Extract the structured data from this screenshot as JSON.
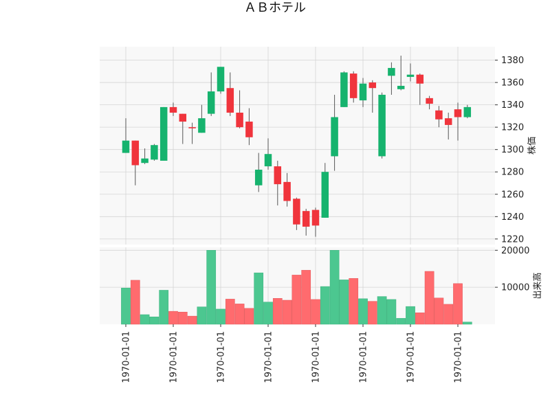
{
  "chart_data": {
    "type": "candlestick",
    "title": "ＡＢホテル",
    "price_label": "株価",
    "volume_label": "出来高",
    "price_ylim": [
      1215,
      1392
    ],
    "price_ticks": [
      1220,
      1240,
      1260,
      1280,
      1300,
      1320,
      1340,
      1360,
      1380
    ],
    "volume_ylim": [
      0,
      20800
    ],
    "volume_ticks": [
      10000,
      20000
    ],
    "x_tick_labels": [
      "1970-01-01",
      "1970-01-01",
      "1970-01-01",
      "1970-01-01",
      "1970-01-01",
      "1970-01-01",
      "1970-01-01",
      "1970-01-01"
    ],
    "x_tick_bar_index": [
      0,
      5,
      10,
      15,
      20,
      25,
      30,
      35
    ],
    "grid": true,
    "colors": {
      "up": "#16b36e",
      "down": "#f0343c",
      "up_volume": "#4cc790",
      "down_volume": "#ff6b6e",
      "grid": "#d4d4d4",
      "panel_bg": "#f8f8f8"
    },
    "ohlc": [
      {
        "open": 1297,
        "high": 1328,
        "low": 1297,
        "close": 1308,
        "volume": 9800
      },
      {
        "open": 1308,
        "high": 1308,
        "low": 1268,
        "close": 1286,
        "volume": 11900
      },
      {
        "open": 1288,
        "high": 1301,
        "low": 1287,
        "close": 1292,
        "volume": 2600
      },
      {
        "open": 1291,
        "high": 1305,
        "low": 1290,
        "close": 1304,
        "volume": 2000
      },
      {
        "open": 1290,
        "high": 1338,
        "low": 1290,
        "close": 1338,
        "volume": 9200
      },
      {
        "open": 1338,
        "high": 1342,
        "low": 1330,
        "close": 1333,
        "volume": 3500
      },
      {
        "open": 1332,
        "high": 1332,
        "low": 1305,
        "close": 1325,
        "volume": 3300
      },
      {
        "open": 1320,
        "high": 1324,
        "low": 1305,
        "close": 1319,
        "volume": 2200
      },
      {
        "open": 1315,
        "high": 1340,
        "low": 1315,
        "close": 1328,
        "volume": 4700
      },
      {
        "open": 1332,
        "high": 1369,
        "low": 1330,
        "close": 1352,
        "volume": 20000
      },
      {
        "open": 1352,
        "high": 1374,
        "low": 1350,
        "close": 1374,
        "volume": 4100
      },
      {
        "open": 1355,
        "high": 1369,
        "low": 1330,
        "close": 1333,
        "volume": 6800
      },
      {
        "open": 1333,
        "high": 1353,
        "low": 1319,
        "close": 1320,
        "volume": 5500
      },
      {
        "open": 1325,
        "high": 1337,
        "low": 1304,
        "close": 1311,
        "volume": 4300
      },
      {
        "open": 1268,
        "high": 1297,
        "low": 1262,
        "close": 1282,
        "volume": 13900
      },
      {
        "open": 1285,
        "high": 1310,
        "low": 1282,
        "close": 1296,
        "volume": 6000
      },
      {
        "open": 1285,
        "high": 1290,
        "low": 1250,
        "close": 1269,
        "volume": 7000
      },
      {
        "open": 1271,
        "high": 1279,
        "low": 1249,
        "close": 1254,
        "volume": 6500
      },
      {
        "open": 1256,
        "high": 1257,
        "low": 1228,
        "close": 1233,
        "volume": 13300
      },
      {
        "open": 1245,
        "high": 1247,
        "low": 1223,
        "close": 1231,
        "volume": 14600
      },
      {
        "open": 1246,
        "high": 1248,
        "low": 1222,
        "close": 1232,
        "volume": 6700
      },
      {
        "open": 1239,
        "high": 1288,
        "low": 1239,
        "close": 1280,
        "volume": 10200
      },
      {
        "open": 1294,
        "high": 1349,
        "low": 1281,
        "close": 1329,
        "volume": 20000
      },
      {
        "open": 1338,
        "high": 1370,
        "low": 1338,
        "close": 1369,
        "volume": 12000
      },
      {
        "open": 1368,
        "high": 1370,
        "low": 1342,
        "close": 1346,
        "volume": 12400
      },
      {
        "open": 1344,
        "high": 1364,
        "low": 1338,
        "close": 1359,
        "volume": 6900
      },
      {
        "open": 1360,
        "high": 1362,
        "low": 1333,
        "close": 1355,
        "volume": 6200
      },
      {
        "open": 1294,
        "high": 1351,
        "low": 1292,
        "close": 1349,
        "volume": 7500
      },
      {
        "open": 1366,
        "high": 1378,
        "low": 1349,
        "close": 1373,
        "volume": 6700
      },
      {
        "open": 1354,
        "high": 1384,
        "low": 1353,
        "close": 1357,
        "volume": 1600
      },
      {
        "open": 1365,
        "high": 1377,
        "low": 1361,
        "close": 1367,
        "volume": 4800
      },
      {
        "open": 1367,
        "high": 1368,
        "low": 1340,
        "close": 1359,
        "volume": 3100
      },
      {
        "open": 1346,
        "high": 1348,
        "low": 1336,
        "close": 1341,
        "volume": 14300
      },
      {
        "open": 1335,
        "high": 1339,
        "low": 1320,
        "close": 1327,
        "volume": 7100
      },
      {
        "open": 1328,
        "high": 1333,
        "low": 1309,
        "close": 1322,
        "volume": 5400
      },
      {
        "open": 1336,
        "high": 1342,
        "low": 1308,
        "close": 1329,
        "volume": 11000
      },
      {
        "open": 1329,
        "high": 1340,
        "low": 1328,
        "close": 1338,
        "volume": 600
      }
    ]
  }
}
